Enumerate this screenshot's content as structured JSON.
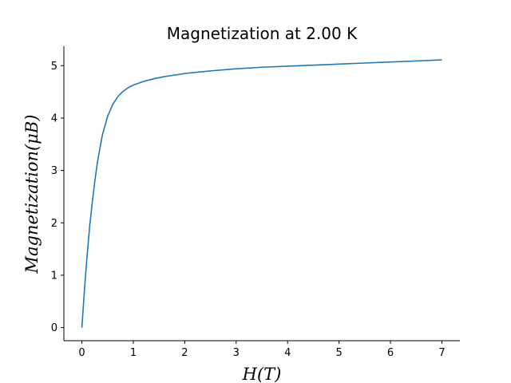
{
  "chart_data": {
    "type": "line",
    "title": "Magnetization at 2.00 K",
    "xlabel": "H(T)",
    "ylabel": "Magnetization(μB)",
    "xlim": [
      -0.35,
      7.35
    ],
    "ylim": [
      -0.25,
      5.37
    ],
    "xticks": [
      0,
      1,
      2,
      3,
      4,
      5,
      6,
      7
    ],
    "yticks": [
      0,
      1,
      2,
      3,
      4,
      5
    ],
    "grid": false,
    "series": [
      {
        "color": "#1f77b4",
        "x": [
          0,
          0.05,
          0.1,
          0.15,
          0.2,
          0.25,
          0.3,
          0.35,
          0.4,
          0.5,
          0.6,
          0.7,
          0.8,
          0.9,
          1.0,
          1.2,
          1.4,
          1.6,
          1.8,
          2.0,
          2.5,
          3.0,
          3.5,
          4.0,
          4.5,
          5.0,
          5.5,
          6.0,
          6.5,
          7.0
        ],
        "y": [
          0,
          0.72,
          1.35,
          1.92,
          2.37,
          2.78,
          3.14,
          3.42,
          3.68,
          4.03,
          4.26,
          4.41,
          4.51,
          4.58,
          4.63,
          4.7,
          4.75,
          4.79,
          4.82,
          4.85,
          4.9,
          4.94,
          4.97,
          4.99,
          5.01,
          5.03,
          5.05,
          5.07,
          5.09,
          5.11
        ]
      }
    ]
  }
}
